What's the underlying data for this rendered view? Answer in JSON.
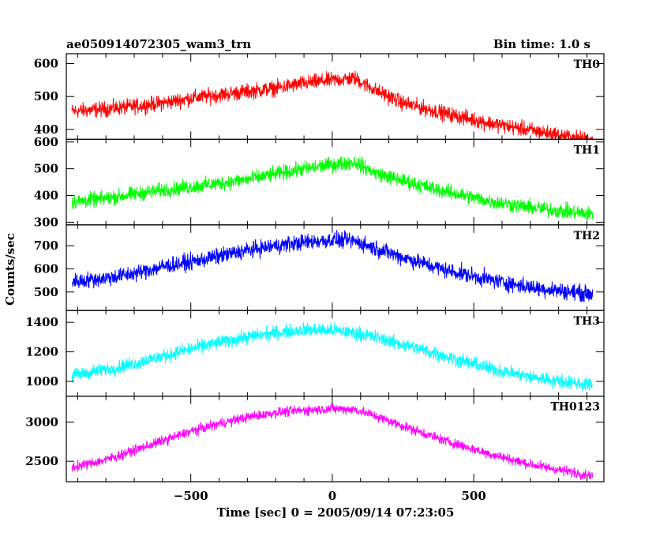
{
  "chart_data": {
    "type": "line",
    "title_left": "ae050914072305_wam3_trn",
    "title_right": "Bin time: 1.0 s",
    "xlabel": "Time [sec] 0 = 2005/09/14 07:23:05",
    "ylabel": "Counts/sec",
    "xlim": [
      -940,
      960
    ],
    "xticks": [
      -500,
      0,
      500
    ],
    "grid": false,
    "panels": [
      {
        "name": "TH0",
        "color": "#ff0000",
        "ylim": [
          370,
          630
        ],
        "yticks": [
          400,
          500,
          600
        ],
        "x": [
          -920,
          -800,
          -700,
          -600,
          -500,
          -400,
          -300,
          -200,
          -100,
          0,
          80,
          150,
          250,
          400,
          550,
          700,
          850,
          920
        ],
        "y": [
          455,
          462,
          470,
          480,
          495,
          505,
          515,
          525,
          540,
          550,
          555,
          520,
          480,
          448,
          420,
          398,
          375,
          368
        ],
        "noise": 20
      },
      {
        "name": "TH1",
        "color": "#00ff00",
        "ylim": [
          290,
          610
        ],
        "yticks": [
          300,
          400,
          500,
          600
        ],
        "x": [
          -920,
          -800,
          -700,
          -600,
          -500,
          -400,
          -300,
          -200,
          -100,
          0,
          80,
          150,
          250,
          400,
          550,
          700,
          850,
          920
        ],
        "y": [
          375,
          390,
          405,
          420,
          432,
          445,
          460,
          480,
          500,
          515,
          525,
          485,
          455,
          415,
          380,
          355,
          338,
          330
        ],
        "noise": 24
      },
      {
        "name": "TH2",
        "color": "#0000ff",
        "ylim": [
          420,
          790
        ],
        "yticks": [
          500,
          600,
          700
        ],
        "x": [
          -920,
          -800,
          -700,
          -600,
          -500,
          -400,
          -300,
          -200,
          -100,
          0,
          80,
          150,
          250,
          400,
          550,
          700,
          850,
          920
        ],
        "y": [
          545,
          560,
          580,
          610,
          630,
          655,
          680,
          700,
          715,
          725,
          720,
          690,
          650,
          595,
          555,
          520,
          500,
          490
        ],
        "noise": 30
      },
      {
        "name": "TH3",
        "color": "#00ffff",
        "ylim": [
          900,
          1480
        ],
        "yticks": [
          1000,
          1200,
          1400
        ],
        "x": [
          -920,
          -800,
          -700,
          -600,
          -500,
          -400,
          -300,
          -200,
          -100,
          0,
          80,
          150,
          250,
          400,
          550,
          700,
          850,
          920
        ],
        "y": [
          1040,
          1080,
          1120,
          1170,
          1220,
          1265,
          1300,
          1330,
          1350,
          1345,
          1330,
          1300,
          1250,
          1170,
          1090,
          1030,
          990,
          975
        ],
        "noise": 40
      },
      {
        "name": "TH0123",
        "color": "#ff00ff",
        "ylim": [
          2240,
          3330
        ],
        "yticks": [
          2500,
          3000
        ],
        "x": [
          -920,
          -800,
          -700,
          -600,
          -500,
          -400,
          -300,
          -200,
          -100,
          0,
          80,
          150,
          250,
          400,
          550,
          700,
          850,
          920
        ],
        "y": [
          2420,
          2520,
          2640,
          2760,
          2880,
          2980,
          3060,
          3120,
          3150,
          3170,
          3160,
          3080,
          2950,
          2760,
          2600,
          2460,
          2360,
          2320
        ],
        "noise": 55
      }
    ]
  }
}
